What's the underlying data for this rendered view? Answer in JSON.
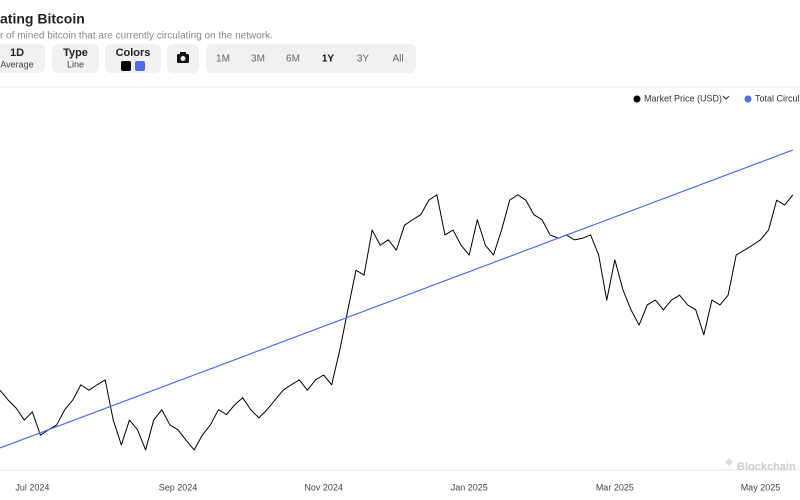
{
  "header": {
    "title": "ating Bitcoin",
    "subtitle": "r of mined bitcoin that are currently circulating on the network."
  },
  "controls": {
    "period": {
      "label": "1D",
      "value": "Average"
    },
    "type": {
      "label": "Type",
      "value": "Line"
    },
    "colors": "Colors",
    "ranges": [
      "1M",
      "3M",
      "6M",
      "1Y",
      "3Y",
      "All"
    ]
  },
  "watermark": "Blockchain",
  "chart_data": {
    "type": "line",
    "categories": [
      null,
      null,
      null,
      null,
      "Jul 2024",
      null,
      null,
      null,
      null,
      null,
      null,
      null,
      null,
      null,
      null,
      null,
      null,
      null,
      null,
      null,
      null,
      null,
      "Sep 2024",
      null,
      null,
      null,
      null,
      null,
      null,
      null,
      null,
      null,
      null,
      null,
      null,
      null,
      null,
      null,
      null,
      null,
      "Nov 2024",
      null,
      null,
      null,
      null,
      null,
      null,
      null,
      null,
      null,
      null,
      null,
      null,
      null,
      null,
      null,
      null,
      null,
      "Jan 2025",
      null,
      null,
      null,
      null,
      null,
      null,
      null,
      null,
      null,
      null,
      null,
      null,
      null,
      null,
      null,
      null,
      null,
      "Mar 2025",
      null,
      null,
      null,
      null,
      null,
      null,
      null,
      null,
      null,
      null,
      null,
      null,
      null,
      null,
      null,
      null,
      null,
      "May 2025",
      null,
      null,
      null,
      null
    ],
    "series": [
      {
        "name": "Market Price (USD)",
        "color": "#000000",
        "values": [
          64700,
          62900,
          61400,
          59200,
          60700,
          56400,
          57400,
          58300,
          61100,
          62900,
          65700,
          64700,
          65700,
          66600,
          59200,
          54600,
          59200,
          57400,
          53700,
          59200,
          61100,
          58300,
          57400,
          55500,
          53700,
          56400,
          58300,
          61100,
          60200,
          62000,
          63300,
          61100,
          59600,
          61100,
          62900,
          64700,
          65700,
          66600,
          64700,
          66600,
          67500,
          65700,
          72100,
          79500,
          86800,
          85900,
          94200,
          91400,
          92400,
          90500,
          95100,
          96100,
          97000,
          99700,
          100700,
          93300,
          94200,
          91400,
          89600,
          96100,
          91400,
          89600,
          94200,
          99700,
          100700,
          99700,
          97000,
          96100,
          93300,
          92700,
          93300,
          92400,
          92700,
          93300,
          89600,
          81300,
          88700,
          83200,
          79500,
          76700,
          80400,
          81300,
          79500,
          81300,
          82200,
          80400,
          79500,
          74900,
          81300,
          80400,
          82200,
          89600,
          90500,
          91400,
          92400,
          94200,
          99700,
          98800,
          100700
        ]
      },
      {
        "name": "Total Circula",
        "color": "#4f6fe8",
        "axis": "y2",
        "values": [
          19711600,
          19713200,
          19714800,
          19716400,
          19718000,
          19719600,
          19721200,
          19722800,
          19724400,
          19726000,
          19727600,
          19729200,
          19730800,
          19732400,
          19734000,
          19735600,
          19737200,
          19738800,
          19740400,
          19742000,
          19743600,
          19745200,
          19746800,
          19748400,
          19750000,
          19751600,
          19753200,
          19754800,
          19756400,
          19758000,
          19759600,
          19761200,
          19762800,
          19764400,
          19766000,
          19767600,
          19769200,
          19770800,
          19772400,
          19774000,
          19775600,
          19777200,
          19778800,
          19780400,
          19782000,
          19783600,
          19785200,
          19786800,
          19788400,
          19790000,
          19791600,
          19793200,
          19794800,
          19796400,
          19798000,
          19799600,
          19801200,
          19802800,
          19804400,
          19806000,
          19807600,
          19809200,
          19810800,
          19812400,
          19814000,
          19815600,
          19817200,
          19818800,
          19820400,
          19822000,
          19823600,
          19825200,
          19826800,
          19828400,
          19830000,
          19831600,
          19833200,
          19834800,
          19836400,
          19838000,
          19839600,
          19841200,
          19842800,
          19844400,
          19846000,
          19847600,
          19849200,
          19850800,
          19852400,
          19854000,
          19855600,
          19857200,
          19858800,
          19860400,
          19862000,
          19863600,
          19865200,
          19866800,
          19868400
        ]
      }
    ],
    "ylim": [
      50000,
      120000
    ],
    "y2lim": [
      19700000,
      19900000
    ],
    "legend": "top-right"
  }
}
